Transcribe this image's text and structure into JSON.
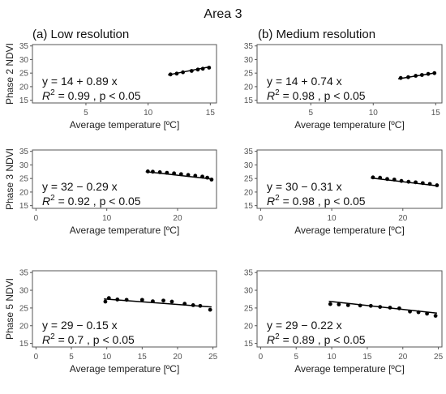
{
  "figure": {
    "title": "Area 3",
    "column_titles": [
      "(a) Low resolution",
      "(b) Medium resolution"
    ],
    "row_labels": [
      "Phase 2 NDVI",
      "Phase 3 NDVI",
      "Phase 5 NDVI"
    ]
  },
  "chart_data": [
    {
      "type": "scatter",
      "row": 0,
      "col": 0,
      "title": "",
      "xlabel": "Average temperature [ºC]",
      "ylabel": "Phase 2 NDVI",
      "xlim": [
        0.7,
        15.5
      ],
      "ylim": [
        14,
        35.5
      ],
      "xticks": [
        5,
        10,
        15
      ],
      "yticks": [
        15,
        20,
        25,
        30,
        35
      ],
      "points": [
        [
          11.8,
          24.5
        ],
        [
          12.3,
          24.8
        ],
        [
          12.8,
          25.3
        ],
        [
          13.5,
          25.8
        ],
        [
          14.0,
          26.3
        ],
        [
          14.4,
          26.6
        ],
        [
          14.9,
          27.0
        ]
      ],
      "fit": {
        "intercept": 14,
        "slope": 0.89,
        "x_range": [
          11.6,
          15.0
        ]
      },
      "equation": "y = 14 + 0.89 x",
      "r2_value": "0.99",
      "p_text": ", p < 0.05"
    },
    {
      "type": "scatter",
      "row": 0,
      "col": 1,
      "title": "",
      "xlabel": "Average temperature [ºC]",
      "ylabel": "",
      "xlim": [
        0.7,
        15.5
      ],
      "ylim": [
        14,
        35.5
      ],
      "xticks": [
        5,
        10,
        15
      ],
      "yticks": [
        15,
        20,
        25,
        30,
        35
      ],
      "points": [
        [
          12.2,
          23.2
        ],
        [
          12.8,
          23.5
        ],
        [
          13.4,
          24.0
        ],
        [
          13.9,
          24.3
        ],
        [
          14.4,
          24.7
        ],
        [
          14.9,
          25.0
        ]
      ],
      "fit": {
        "intercept": 14,
        "slope": 0.74,
        "x_range": [
          12.0,
          15.0
        ]
      },
      "equation": "y = 14 + 0.74 x",
      "r2_value": "0.98",
      "p_text": ", p < 0.05"
    },
    {
      "type": "scatter",
      "row": 1,
      "col": 0,
      "title": "",
      "xlabel": "Average temperature [ºC]",
      "ylabel": "Phase 3 NDVI",
      "xlim": [
        -0.5,
        25.5
      ],
      "ylim": [
        14,
        35.5
      ],
      "xticks": [
        0,
        10,
        20
      ],
      "yticks": [
        15,
        20,
        25,
        30,
        35
      ],
      "points": [
        [
          15.8,
          27.6
        ],
        [
          16.5,
          27.5
        ],
        [
          17.5,
          27.3
        ],
        [
          18.5,
          27.1
        ],
        [
          19.5,
          26.9
        ],
        [
          20.5,
          26.6
        ],
        [
          21.5,
          26.3
        ],
        [
          22.5,
          26.0
        ],
        [
          23.5,
          25.7
        ],
        [
          24.2,
          25.3
        ],
        [
          24.8,
          24.6
        ]
      ],
      "fit": {
        "intercept": 32,
        "slope": -0.29,
        "x_range": [
          15.5,
          25.0
        ]
      },
      "equation": "y = 32 − 0.29 x",
      "r2_value": "0.92",
      "p_text": ", p < 0.05"
    },
    {
      "type": "scatter",
      "row": 1,
      "col": 1,
      "title": "",
      "xlabel": "Average temperature [ºC]",
      "ylabel": "",
      "xlim": [
        -0.5,
        25.5
      ],
      "ylim": [
        14,
        35.5
      ],
      "xticks": [
        0,
        10,
        20
      ],
      "yticks": [
        15,
        20,
        25,
        30,
        35
      ],
      "points": [
        [
          15.8,
          25.4
        ],
        [
          16.8,
          25.3
        ],
        [
          17.8,
          24.8
        ],
        [
          18.8,
          24.6
        ],
        [
          19.8,
          24.1
        ],
        [
          20.8,
          23.8
        ],
        [
          21.8,
          23.6
        ],
        [
          22.8,
          23.3
        ],
        [
          23.8,
          23.0
        ],
        [
          24.8,
          22.5
        ]
      ],
      "fit": {
        "intercept": 30,
        "slope": -0.31,
        "x_range": [
          15.5,
          25.0
        ]
      },
      "equation": "y = 30 − 0.31 x",
      "r2_value": "0.98",
      "p_text": ", p < 0.05"
    },
    {
      "type": "scatter",
      "row": 2,
      "col": 0,
      "title": "",
      "xlabel": "Average temperature [ºC]",
      "ylabel": "Phase 5 NDVI",
      "xlim": [
        -0.5,
        25.5
      ],
      "ylim": [
        14,
        35.5
      ],
      "xticks": [
        0,
        5,
        10,
        15,
        20,
        25
      ],
      "yticks": [
        15,
        20,
        25,
        30,
        35
      ],
      "points": [
        [
          9.8,
          26.8
        ],
        [
          10.3,
          27.8
        ],
        [
          11.5,
          27.4
        ],
        [
          12.8,
          27.3
        ],
        [
          15.0,
          27.3
        ],
        [
          16.5,
          26.9
        ],
        [
          18.0,
          27.1
        ],
        [
          19.2,
          26.8
        ],
        [
          21.0,
          26.2
        ],
        [
          22.2,
          25.8
        ],
        [
          23.2,
          25.6
        ],
        [
          24.6,
          24.5
        ]
      ],
      "fit": {
        "intercept": 29,
        "slope": -0.15,
        "x_range": [
          9.6,
          24.8
        ]
      },
      "equation": "y = 29 − 0.15 x",
      "r2_value": "0.7",
      "p_text": ", p < 0.05"
    },
    {
      "type": "scatter",
      "row": 2,
      "col": 1,
      "title": "",
      "xlabel": "Average temperature [ºC]",
      "ylabel": "",
      "xlim": [
        -0.5,
        25.5
      ],
      "ylim": [
        14,
        35.5
      ],
      "xticks": [
        0,
        5,
        10,
        15,
        20,
        25
      ],
      "yticks": [
        15,
        20,
        25,
        30,
        35
      ],
      "points": [
        [
          9.8,
          26.1
        ],
        [
          11.0,
          26.0
        ],
        [
          12.3,
          25.8
        ],
        [
          14.0,
          25.7
        ],
        [
          15.5,
          25.6
        ],
        [
          16.8,
          25.3
        ],
        [
          18.2,
          25.1
        ],
        [
          19.5,
          24.9
        ],
        [
          21.0,
          24.0
        ],
        [
          22.2,
          23.8
        ],
        [
          23.4,
          23.4
        ],
        [
          24.6,
          22.8
        ]
      ],
      "fit": {
        "intercept": 29,
        "slope": -0.22,
        "x_range": [
          9.6,
          24.8
        ]
      },
      "equation": "y = 29 − 0.22 x",
      "r2_value": "0.89",
      "p_text": ", p < 0.05"
    }
  ]
}
